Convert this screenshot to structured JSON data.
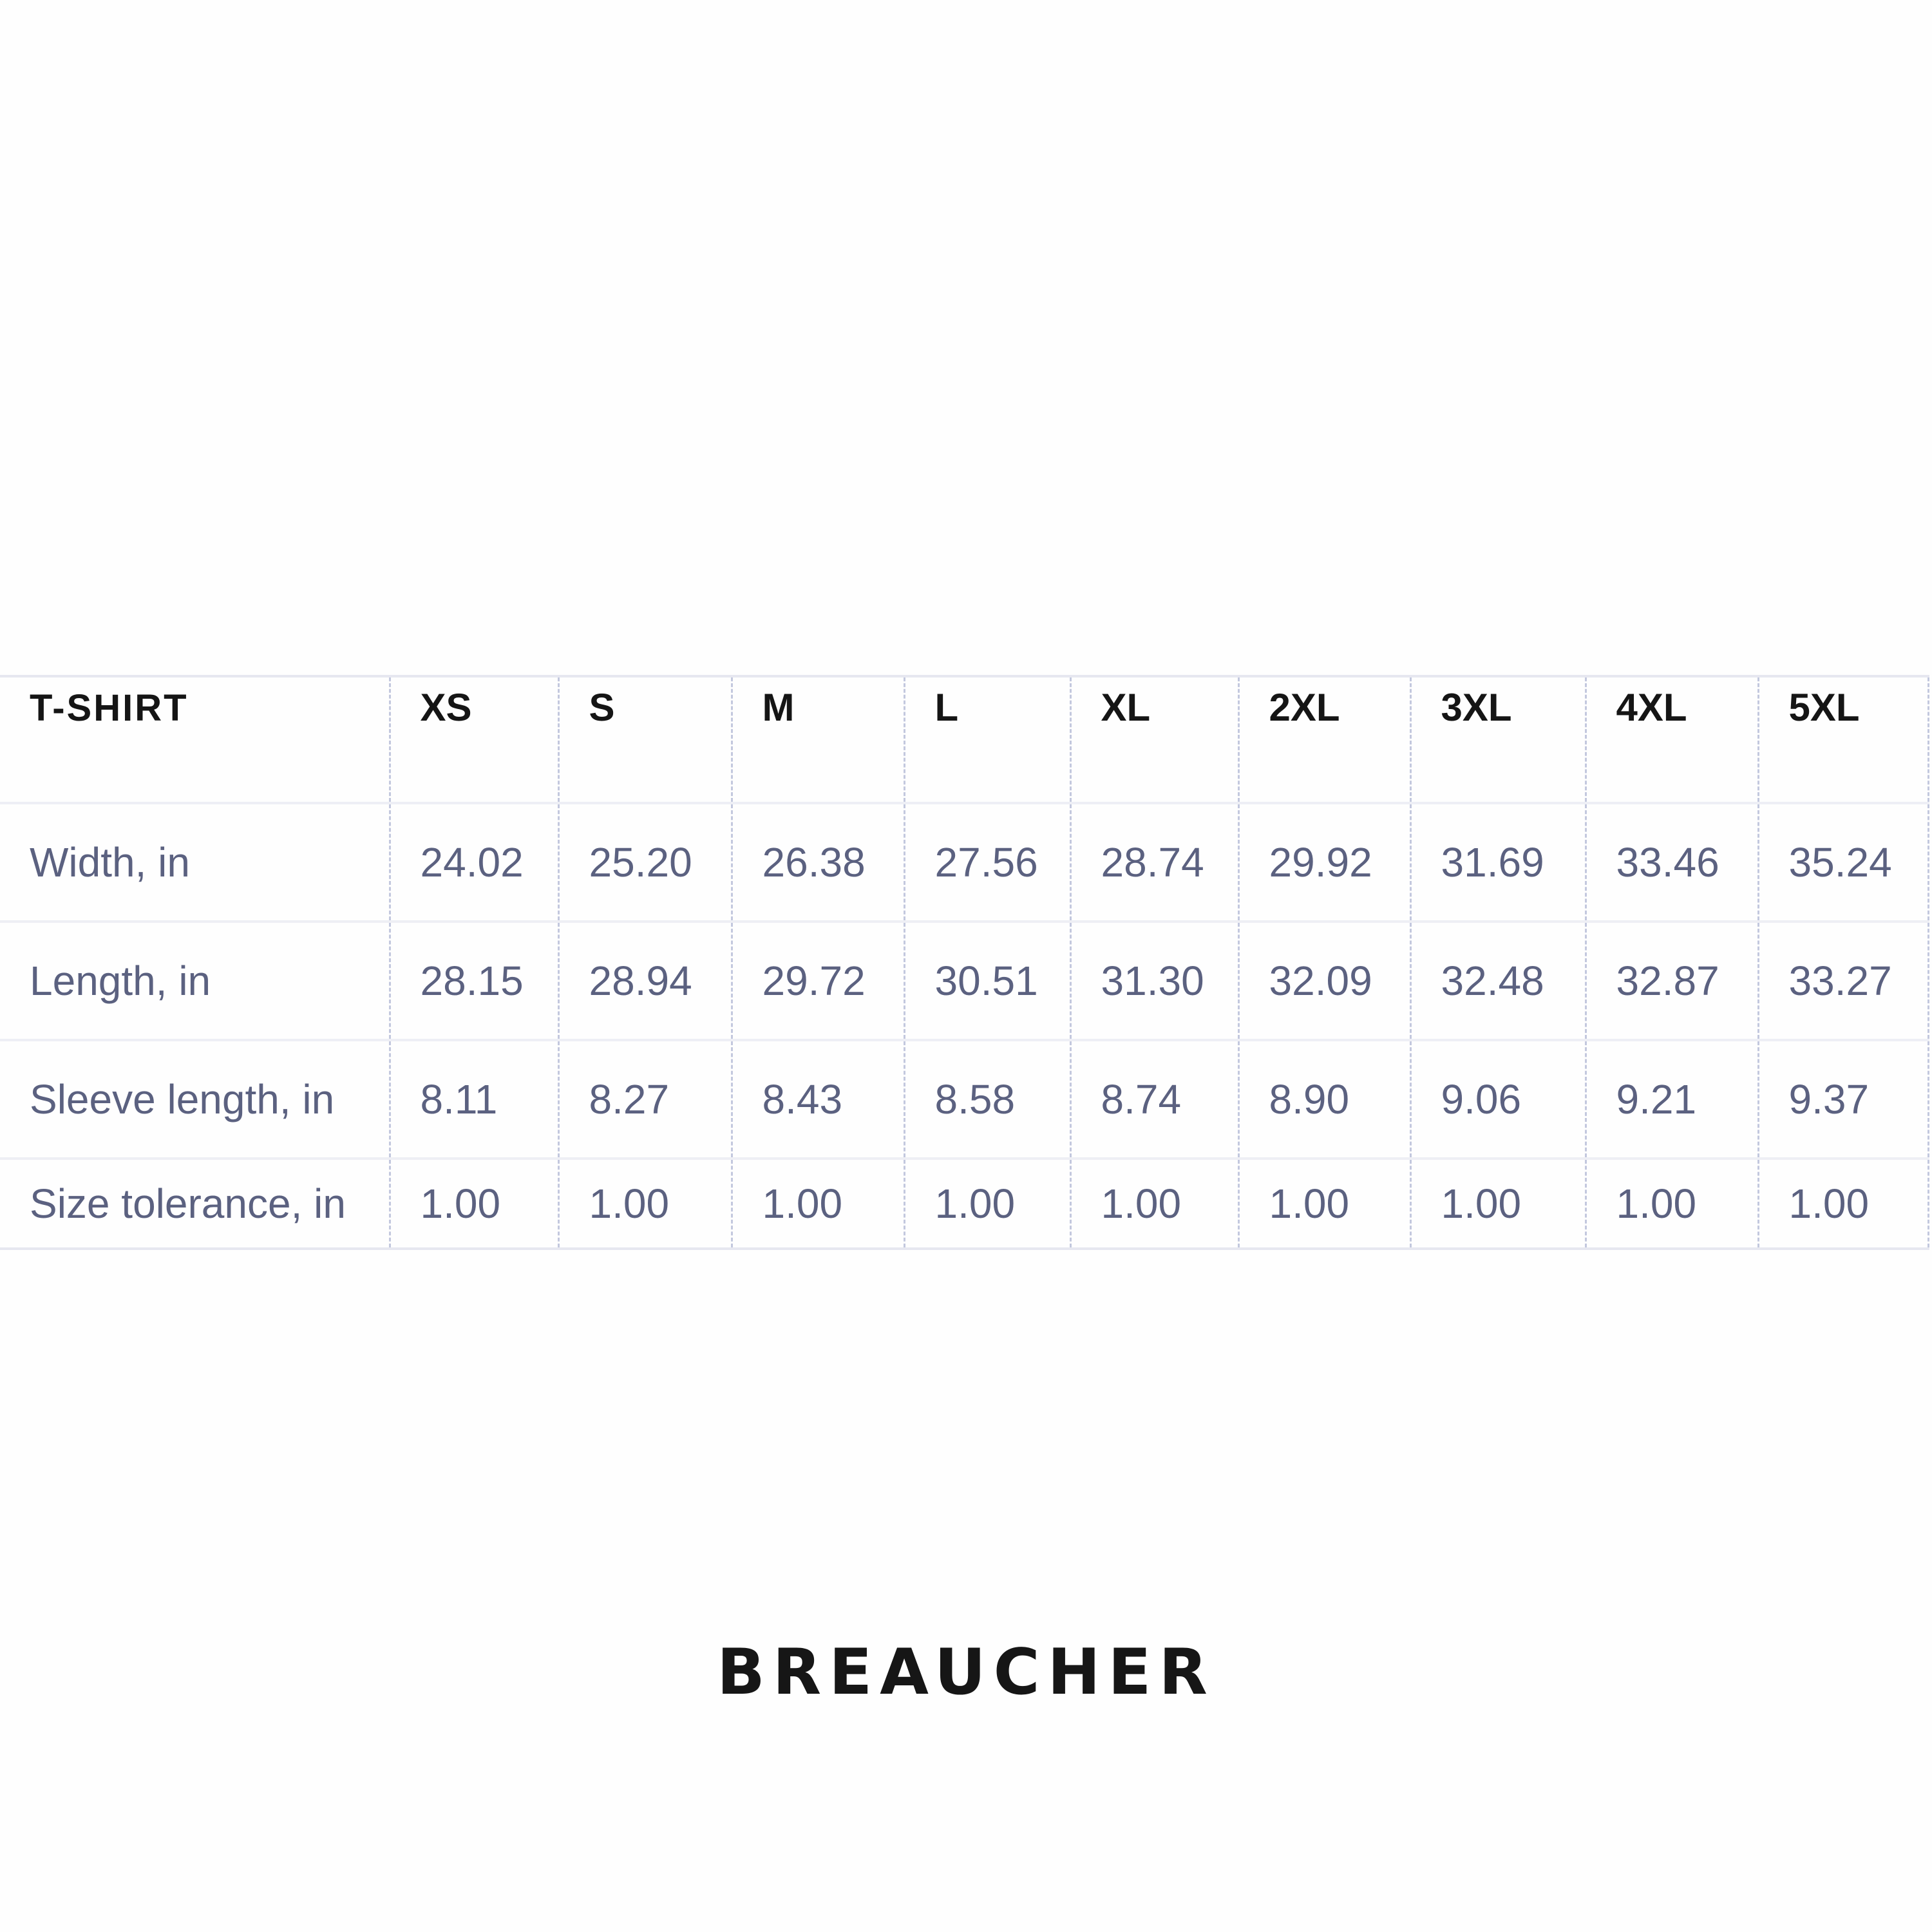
{
  "table": {
    "title": "T-SHIRT",
    "sizes": [
      "XS",
      "S",
      "M",
      "L",
      "XL",
      "2XL",
      "3XL",
      "4XL",
      "5XL"
    ],
    "rows": [
      {
        "label": "Width, in",
        "values": [
          "24.02",
          "25.20",
          "26.38",
          "27.56",
          "28.74",
          "29.92",
          "31.69",
          "33.46",
          "35.24"
        ]
      },
      {
        "label": "Length, in",
        "values": [
          "28.15",
          "28.94",
          "29.72",
          "30.51",
          "31.30",
          "32.09",
          "32.48",
          "32.87",
          "33.27"
        ]
      },
      {
        "label": "Sleeve length, in",
        "values": [
          "8.11",
          "8.27",
          "8.43",
          "8.58",
          "8.74",
          "8.90",
          "9.06",
          "9.21",
          "9.37"
        ]
      },
      {
        "label": "Size tolerance, in",
        "values": [
          "1.00",
          "1.00",
          "1.00",
          "1.00",
          "1.00",
          "1.00",
          "1.00",
          "1.00",
          "1.00"
        ]
      }
    ]
  },
  "brand": "BREAUCHER",
  "colors": {
    "header_text": "#151515",
    "value_text": "#5b6180",
    "grid": "#c3c8de"
  }
}
